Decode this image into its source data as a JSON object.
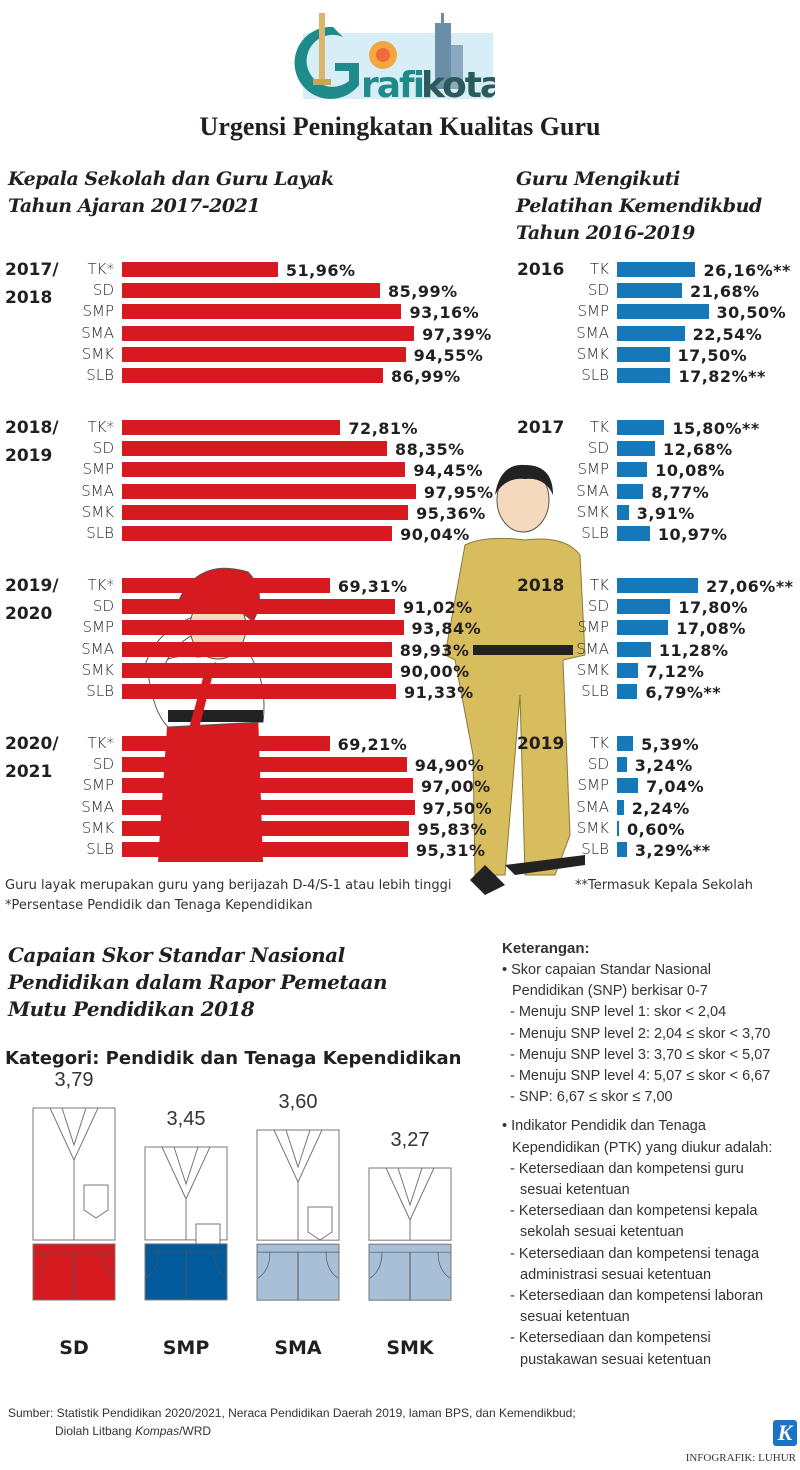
{
  "logo": {
    "text": "Grafikota",
    "colors": {
      "teal": "#1f8a8a",
      "sky": "#d7eef7"
    }
  },
  "title": "Urgensi Peningkatan Kualitas Guru",
  "colors": {
    "red": "#d71920",
    "blue": "#1578b8",
    "navy": "#005a9c",
    "lightblue": "#a8bfd8"
  },
  "chart_data": [
    {
      "type": "bar",
      "orientation": "horizontal",
      "title": "Kepala Sekolah dan Guru Layak\nTahun Ajaran 2017-2021",
      "title_lines": [
        "Kepala Sekolah dan Guru Layak",
        "Tahun Ajaran 2017-2021"
      ],
      "unit": "%",
      "color": "#d71920",
      "categories": [
        "TK*",
        "SD",
        "SMP",
        "SMA",
        "SMK",
        "SLB"
      ],
      "groups": [
        {
          "name": "2017/\n2018",
          "lines": [
            "2017/",
            "2018"
          ],
          "values": [
            51.96,
            85.99,
            93.16,
            97.39,
            94.55,
            86.99
          ],
          "labels": [
            "51,96%",
            "85,99%",
            "93,16%",
            "97,39%",
            "94,55%",
            "86,99%"
          ]
        },
        {
          "name": "2018/\n2019",
          "lines": [
            "2018/",
            "2019"
          ],
          "values": [
            72.81,
            88.35,
            94.45,
            97.95,
            95.36,
            90.04
          ],
          "labels": [
            "72,81%",
            "88,35%",
            "94,45%",
            "97,95%",
            "95,36%",
            "90,04%"
          ]
        },
        {
          "name": "2019/\n2020",
          "lines": [
            "2019/",
            "2020"
          ],
          "values": [
            69.31,
            91.02,
            93.84,
            89.93,
            90.0,
            91.33
          ],
          "labels": [
            "69,31%",
            "91,02%",
            "93,84%",
            "89,93%",
            "90,00%",
            "91,33%"
          ]
        },
        {
          "name": "2020/\n2021",
          "lines": [
            "2020/",
            "2021"
          ],
          "values": [
            69.21,
            94.9,
            97.0,
            97.5,
            95.83,
            95.31
          ],
          "labels": [
            "69,21%",
            "94,90%",
            "97,00%",
            "97,50%",
            "95,83%",
            "95,31%"
          ]
        }
      ],
      "notes": [
        "Guru layak merupakan guru yang berijazah D-4/S-1 atau lebih tinggi",
        "*Persentase Pendidik dan Tenaga Kependidikan"
      ]
    },
    {
      "type": "bar",
      "orientation": "horizontal",
      "title": "Guru Mengikuti\nPelatihan Kemendikbud\nTahun 2016-2019",
      "title_lines": [
        "Guru Mengikuti",
        "Pelatihan Kemendikbud",
        "Tahun 2016-2019"
      ],
      "unit": "%",
      "color": "#1578b8",
      "categories": [
        "TK",
        "SD",
        "SMP",
        "SMA",
        "SMK",
        "SLB"
      ],
      "groups": [
        {
          "name": "2016",
          "lines": [
            "2016"
          ],
          "values": [
            26.16,
            21.68,
            30.5,
            22.54,
            17.5,
            17.82
          ],
          "labels": [
            "26,16%**",
            "21,68%",
            "30,50%",
            "22,54%",
            "17,50%",
            "17,82%**"
          ]
        },
        {
          "name": "2017",
          "lines": [
            "2017"
          ],
          "values": [
            15.8,
            12.68,
            10.08,
            8.77,
            3.91,
            10.97
          ],
          "labels": [
            "15,80%**",
            "12,68%",
            "10,08%",
            "8,77%",
            "3,91%",
            "10,97%"
          ]
        },
        {
          "name": "2018",
          "lines": [
            "2018"
          ],
          "values": [
            27.06,
            17.8,
            17.08,
            11.28,
            7.12,
            6.79
          ],
          "labels": [
            "27,06%**",
            "17,80%",
            "17,08%",
            "11,28%",
            "7,12%",
            "6,79%**"
          ]
        },
        {
          "name": "2019",
          "lines": [
            "2019"
          ],
          "values": [
            5.39,
            3.24,
            7.04,
            2.24,
            0.6,
            3.29
          ],
          "labels": [
            "5,39%",
            "3,24%",
            "7,04%",
            "2,24%",
            "0,60%",
            "3,29%**"
          ]
        }
      ],
      "notes": [
        "**Termasuk Kepala Sekolah"
      ]
    },
    {
      "type": "bar",
      "orientation": "vertical",
      "title": "Capaian Skor Standar Nasional\nPendidikan dalam Rapor Pemetaan\nMutu Pendidikan 2018",
      "title_lines": [
        "Capaian Skor Standar Nasional",
        "Pendidikan dalam Rapor Pemetaan",
        "Mutu Pendidikan 2018"
      ],
      "subtitle": "Kategori: Pendidik dan Tenaga Kependidikan",
      "categories": [
        "SD",
        "SMP",
        "SMA",
        "SMK"
      ],
      "values": [
        3.79,
        3.45,
        3.6,
        3.27
      ],
      "labels": [
        "3,79",
        "3,45",
        "3,60",
        "3,27"
      ],
      "pants_colors": [
        "#d71920",
        "#005a9c",
        "#a8bfd8",
        "#a8bfd8"
      ]
    }
  ],
  "legend": {
    "heading": "Keterangan:",
    "lines": [
      "• Skor capaian Standar Nasional",
      "Pendidikan (SNP) berkisar 0-7",
      "- Menuju SNP level 1: skor < 2,04",
      "- Menuju SNP level 2: 2,04 ≤ skor < 3,70",
      "- Menuju SNP level 3: 3,70 ≤ skor < 5,07",
      "- Menuju SNP level 4: 5,07 ≤ skor < 6,67",
      "- SNP: 6,67 ≤ skor ≤ 7,00",
      "",
      "• Indikator Pendidik dan Tenaga",
      "Kependidikan (PTK) yang diukur adalah:",
      "- Ketersediaan dan kompetensi guru",
      "sesuai ketentuan",
      "- Ketersediaan dan kompetensi kepala",
      "sekolah sesuai ketentuan",
      "- Ketersediaan dan kompetensi tenaga",
      "administrasi sesuai ketentuan",
      "- Ketersediaan dan kompetensi laboran",
      "sesuai ketentuan",
      "- Ketersediaan dan kompetensi",
      "pustakawan sesuai ketentuan"
    ]
  },
  "source": {
    "line1": "Sumber: Statistik Pendidikan 2020/2021, Neraca Pendidikan Daerah 2019, laman BPS, dan Kemendikbud;",
    "line2_prefix": "Diolah Litbang ",
    "line2_italic": "Kompas",
    "line2_suffix": "/WRD"
  },
  "kompas_logo": "K",
  "credit": "INFOGRAFIK: LUHUR"
}
